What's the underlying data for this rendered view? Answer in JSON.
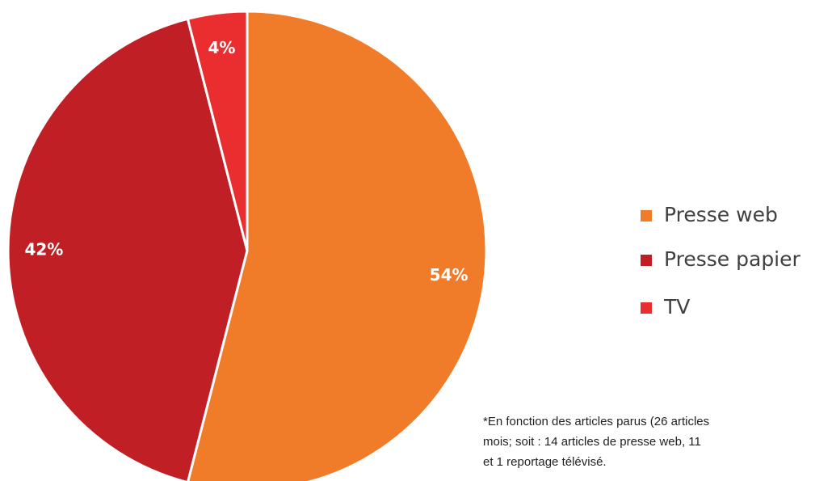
{
  "chart_data": {
    "type": "pie",
    "categories": [
      "Presse web",
      "Presse papier",
      "TV"
    ],
    "values": [
      54,
      42,
      4
    ],
    "value_labels": [
      "54%",
      "42%",
      "4%"
    ],
    "colors": [
      "#f07c2a",
      "#c11f26",
      "#ea2e30"
    ],
    "note": [
      "*En fonction des articles parus (26 articles",
      "mois; soit : 14 articles de presse web, 11",
      "et 1 reportage télévisé."
    ]
  }
}
